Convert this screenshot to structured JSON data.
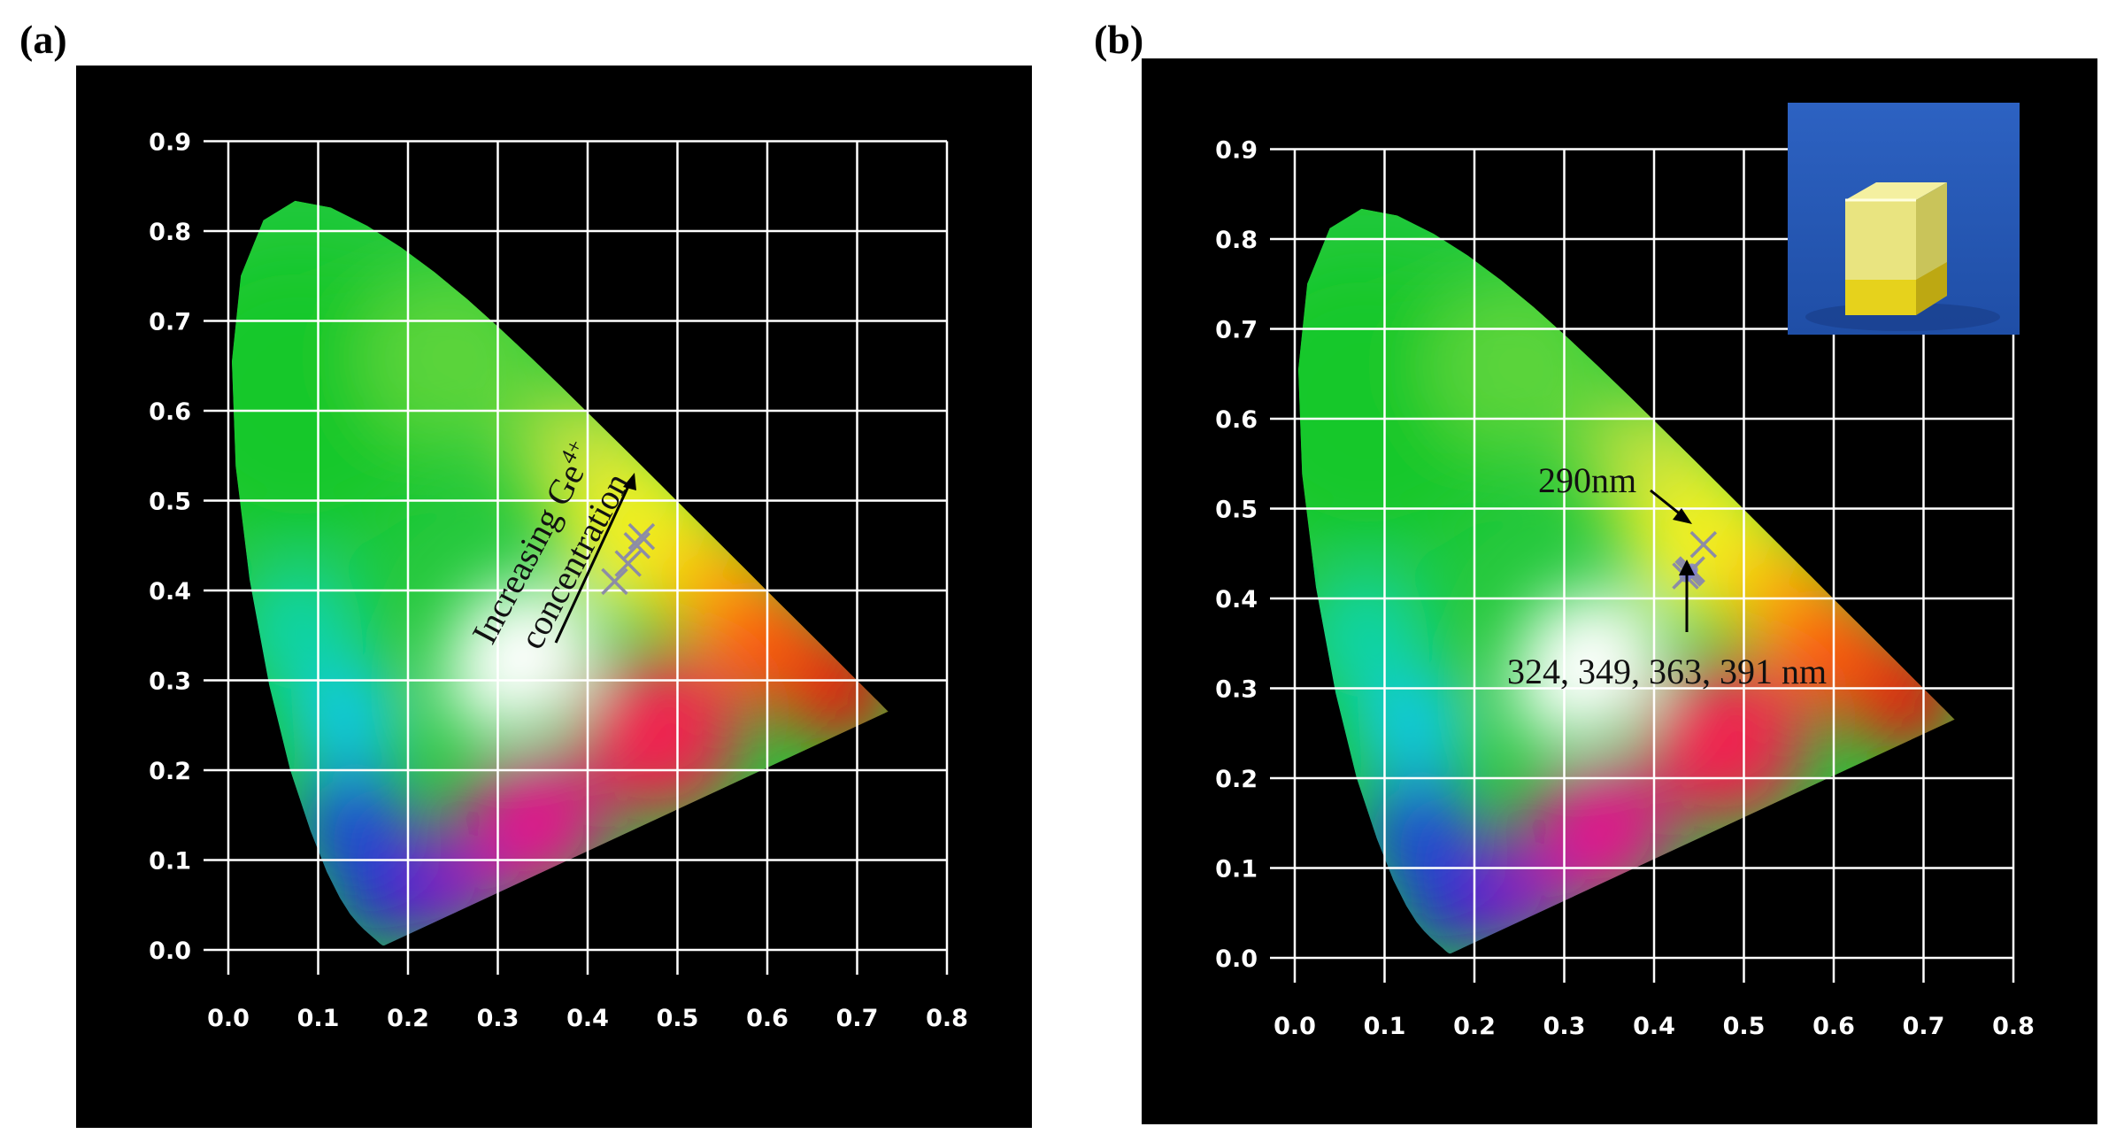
{
  "panels": [
    {
      "label": "(a)"
    },
    {
      "label": "(b)"
    }
  ],
  "chart_data": [
    {
      "type": "scatter",
      "title": "",
      "xlabel": "",
      "ylabel": "",
      "xlim": [
        0.0,
        0.8
      ],
      "ylim": [
        0.0,
        0.9
      ],
      "x_ticks": [
        "0.0",
        "0.1",
        "0.2",
        "0.3",
        "0.4",
        "0.5",
        "0.6",
        "0.7",
        "0.8"
      ],
      "y_ticks": [
        "0.0",
        "0.1",
        "0.2",
        "0.3",
        "0.4",
        "0.5",
        "0.6",
        "0.7",
        "0.8",
        "0.9"
      ],
      "grid": true,
      "background": "#000000",
      "series": [
        {
          "x": [
            0.43,
            0.445,
            0.455,
            0.46
          ],
          "y": [
            0.41,
            0.43,
            0.45,
            0.46
          ],
          "marker": "x"
        }
      ],
      "annotations": {
        "line1": "Increasing Ge",
        "line1_sup": "4+",
        "line2": "concentration"
      }
    },
    {
      "type": "scatter",
      "title": "",
      "xlabel": "",
      "ylabel": "",
      "xlim": [
        0.0,
        0.8
      ],
      "ylim": [
        0.0,
        0.9
      ],
      "x_ticks": [
        "0.0",
        "0.1",
        "0.2",
        "0.3",
        "0.4",
        "0.5",
        "0.6",
        "0.7",
        "0.8"
      ],
      "y_ticks": [
        "0.0",
        "0.1",
        "0.2",
        "0.3",
        "0.4",
        "0.5",
        "0.6",
        "0.7",
        "0.8",
        "0.9"
      ],
      "grid": true,
      "background": "#000000",
      "series": [
        {
          "x": [
            0.455
          ],
          "y": [
            0.46
          ],
          "marker": "x"
        },
        {
          "x": [
            0.435,
            0.44,
            0.442,
            0.438
          ],
          "y": [
            0.425,
            0.43,
            0.432,
            0.428
          ],
          "marker": "x"
        }
      ],
      "annotations": {
        "label_290": "290nm",
        "label_multi": "324, 349, 363, 391 nm"
      },
      "inset": "photo-of-yellow-crystal-cube"
    }
  ]
}
